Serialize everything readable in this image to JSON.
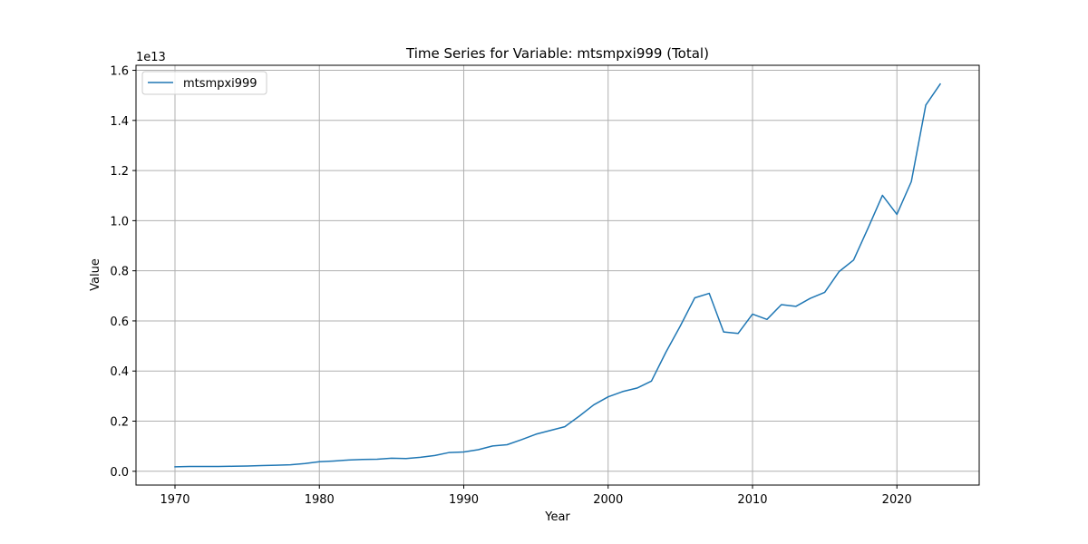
{
  "chart_data": {
    "type": "line",
    "title": "Time Series for Variable: mtsmpxi999 (Total)",
    "xlabel": "Year",
    "ylabel": "Value",
    "y_offset_label": "1e13",
    "y_unit_scale": 10000000000000,
    "xlim": [
      1967.3,
      2025.7
    ],
    "ylim": [
      -0.055,
      1.62
    ],
    "x_ticks": [
      1970,
      1980,
      1990,
      2000,
      2010,
      2020
    ],
    "y_ticks": [
      0.0,
      0.2,
      0.4,
      0.6,
      0.8,
      1.0,
      1.2,
      1.4,
      1.6
    ],
    "y_tick_labels": [
      "0.0",
      "0.2",
      "0.4",
      "0.6",
      "0.8",
      "1.0",
      "1.2",
      "1.4",
      "1.6"
    ],
    "grid": true,
    "legend_position": "top-left",
    "series": [
      {
        "name": "mtsmpxi999",
        "color": "#1f77b4",
        "x": [
          1970,
          1971,
          1972,
          1973,
          1974,
          1975,
          1976,
          1977,
          1978,
          1979,
          1980,
          1981,
          1982,
          1983,
          1984,
          1985,
          1986,
          1987,
          1988,
          1989,
          1990,
          1991,
          1992,
          1993,
          1994,
          1995,
          1996,
          1997,
          1998,
          1999,
          2000,
          2001,
          2002,
          2003,
          2004,
          2005,
          2006,
          2007,
          2008,
          2009,
          2010,
          2011,
          2012,
          2013,
          2014,
          2015,
          2016,
          2017,
          2018,
          2019,
          2020,
          2021,
          2022,
          2023
        ],
        "values": [
          0.018,
          0.019,
          0.019,
          0.019,
          0.02,
          0.021,
          0.023,
          0.024,
          0.026,
          0.031,
          0.038,
          0.041,
          0.045,
          0.047,
          0.048,
          0.052,
          0.051,
          0.056,
          0.063,
          0.075,
          0.077,
          0.086,
          0.101,
          0.106,
          0.126,
          0.148,
          0.163,
          0.178,
          0.22,
          0.265,
          0.297,
          0.318,
          0.332,
          0.36,
          0.475,
          0.58,
          0.692,
          0.71,
          0.556,
          0.55,
          0.627,
          0.606,
          0.665,
          0.658,
          0.69,
          0.714,
          0.797,
          0.843,
          0.97,
          1.101,
          1.025,
          1.156,
          1.461,
          1.545
        ]
      }
    ]
  }
}
